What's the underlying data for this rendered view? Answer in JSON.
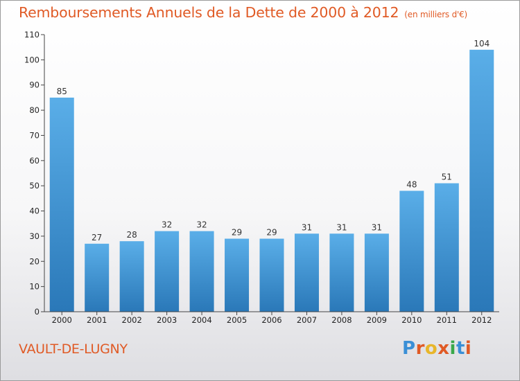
{
  "header": {
    "title": "Remboursements Annuels de la Dette de 2000 à 2012",
    "unit": "(en milliers d'€)"
  },
  "footer": {
    "commune": "VAULT-DE-LUGNY",
    "logo": "Proxiti"
  },
  "colors": {
    "accent": "#e05a25",
    "bar_top": "#5aaee8",
    "bar_bottom": "#2a78b8",
    "logo_letters": [
      "#3a8fd6",
      "#e05a25",
      "#e8b62a",
      "#e05a25",
      "#3aa84a",
      "#3a8fd6",
      "#e05a25"
    ]
  },
  "chart_data": {
    "type": "bar",
    "categories": [
      "2000",
      "2001",
      "2002",
      "2003",
      "2004",
      "2005",
      "2006",
      "2007",
      "2008",
      "2009",
      "2010",
      "2011",
      "2012"
    ],
    "values": [
      85,
      27,
      28,
      32,
      32,
      29,
      29,
      31,
      31,
      31,
      48,
      51,
      104
    ],
    "ylim": [
      0,
      110
    ],
    "yticks": [
      0,
      10,
      20,
      30,
      40,
      50,
      60,
      70,
      80,
      90,
      100,
      110
    ],
    "grid": false,
    "data_labels": true
  }
}
